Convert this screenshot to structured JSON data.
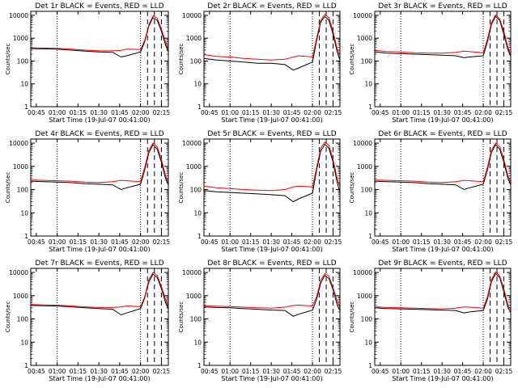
{
  "figure": {
    "x_tick_labels": [
      "00:45",
      "01:00",
      "01:15",
      "01:30",
      "01:45",
      "02:00",
      "02:15"
    ],
    "y_tick_labels": [
      "1",
      "10",
      "100",
      "1000",
      "10000"
    ],
    "colors": {
      "events": "#000000",
      "lld": "#ff0000",
      "frame": "#000000"
    }
  },
  "chart_data": [
    {
      "type": "line",
      "title": "Det 1r BLACK = Events, RED = LLD",
      "xlabel": "Start Time (19-Jul-07 00:41:00)",
      "ylabel": "Counts/sec",
      "scale_y": "log",
      "ylim": [
        1,
        15000
      ],
      "xlim": [
        "00:41",
        "02:20"
      ],
      "grid": false,
      "x": [
        "00:41",
        "00:50",
        "01:00",
        "01:10",
        "01:20",
        "01:30",
        "01:40",
        "01:46",
        "01:50",
        "02:00",
        "02:03",
        "02:06",
        "02:09",
        "02:12",
        "02:15",
        "02:18",
        "02:20"
      ],
      "series": [
        {
          "name": "BLACK = Events",
          "values": [
            350,
            340,
            330,
            300,
            270,
            250,
            240,
            150,
            170,
            250,
            700,
            3500,
            8000,
            6000,
            2000,
            500,
            250
          ]
        },
        {
          "name": "RED = LLD",
          "values": [
            380,
            370,
            360,
            330,
            300,
            280,
            280,
            290,
            330,
            320,
            800,
            4000,
            9500,
            7500,
            2500,
            700,
            300
          ]
        }
      ],
      "markers": {
        "dotted": [
          "01:00",
          "02:00"
        ],
        "dashed": [
          "02:05",
          "02:10",
          "02:15"
        ]
      }
    },
    {
      "type": "line",
      "title": "Det 2r BLACK = Events, RED = LLD",
      "xlabel": "Start Time (19-Jul-07 00:41:00)",
      "ylabel": "Counts/sec",
      "scale_y": "log",
      "ylim": [
        1,
        15000
      ],
      "xlim": [
        "00:41",
        "02:20"
      ],
      "grid": false,
      "x": [
        "00:41",
        "00:50",
        "01:00",
        "01:10",
        "01:20",
        "01:30",
        "01:40",
        "01:46",
        "01:50",
        "02:00",
        "02:03",
        "02:06",
        "02:09",
        "02:12",
        "02:15",
        "02:18",
        "02:20"
      ],
      "series": [
        {
          "name": "BLACK = Events",
          "values": [
            130,
            110,
            100,
            90,
            80,
            80,
            70,
            40,
            50,
            90,
            800,
            5000,
            9000,
            6000,
            1500,
            250,
            110
          ]
        },
        {
          "name": "RED = LLD",
          "values": [
            190,
            160,
            150,
            130,
            120,
            110,
            120,
            150,
            170,
            150,
            1000,
            6000,
            11000,
            8000,
            2000,
            350,
            170
          ]
        }
      ],
      "markers": {
        "dotted": [
          "01:00",
          "02:00"
        ],
        "dashed": [
          "02:05",
          "02:10",
          "02:15"
        ]
      }
    },
    {
      "type": "line",
      "title": "Det 3r BLACK = Events, RED = LLD",
      "xlabel": "Start Time (19-Jul-07 00:41:00)",
      "ylabel": "Counts/sec",
      "scale_y": "log",
      "ylim": [
        1,
        15000
      ],
      "xlim": [
        "00:41",
        "02:20"
      ],
      "grid": false,
      "x": [
        "00:41",
        "00:50",
        "01:00",
        "01:10",
        "01:20",
        "01:30",
        "01:40",
        "01:46",
        "01:50",
        "02:00",
        "02:03",
        "02:06",
        "02:09",
        "02:12",
        "02:15",
        "02:18",
        "02:20"
      ],
      "series": [
        {
          "name": "BLACK = Events",
          "values": [
            250,
            220,
            210,
            200,
            190,
            180,
            170,
            140,
            150,
            170,
            700,
            4000,
            9000,
            6000,
            1500,
            300,
            160
          ]
        },
        {
          "name": "RED = LLD",
          "values": [
            290,
            260,
            250,
            230,
            220,
            220,
            240,
            270,
            260,
            230,
            900,
            5000,
            10500,
            7000,
            2000,
            400,
            190
          ]
        }
      ],
      "markers": {
        "dotted": [
          "01:00",
          "02:00"
        ],
        "dashed": [
          "02:05",
          "02:10",
          "02:15"
        ]
      }
    },
    {
      "type": "line",
      "title": "Det 4r BLACK = Events, RED = LLD",
      "xlabel": "Start Time (19-Jul-07 00:41:00)",
      "ylabel": "Counts/sec",
      "scale_y": "log",
      "ylim": [
        1,
        15000
      ],
      "xlim": [
        "00:41",
        "02:20"
      ],
      "grid": false,
      "x": [
        "00:41",
        "00:50",
        "01:00",
        "01:10",
        "01:20",
        "01:30",
        "01:40",
        "01:46",
        "01:50",
        "02:00",
        "02:03",
        "02:06",
        "02:09",
        "02:12",
        "02:15",
        "02:18",
        "02:20"
      ],
      "series": [
        {
          "name": "BLACK = Events",
          "values": [
            230,
            220,
            210,
            200,
            180,
            170,
            160,
            100,
            120,
            170,
            700,
            4000,
            8500,
            5500,
            1500,
            300,
            160
          ]
        },
        {
          "name": "RED = LLD",
          "values": [
            260,
            250,
            240,
            230,
            210,
            200,
            220,
            250,
            240,
            220,
            900,
            5000,
            10000,
            7000,
            2000,
            400,
            200
          ]
        }
      ],
      "markers": {
        "dotted": [
          "01:00",
          "02:00"
        ],
        "dashed": [
          "02:05",
          "02:10",
          "02:15"
        ]
      }
    },
    {
      "type": "line",
      "title": "Det 5r BLACK = Events, RED = LLD",
      "xlabel": "Start Time (19-Jul-07 00:41:00)",
      "ylabel": "Counts/sec",
      "scale_y": "log",
      "ylim": [
        1,
        15000
      ],
      "xlim": [
        "00:41",
        "02:20"
      ],
      "grid": false,
      "x": [
        "00:41",
        "00:50",
        "01:00",
        "01:10",
        "01:20",
        "01:30",
        "01:40",
        "01:46",
        "01:50",
        "02:00",
        "02:03",
        "02:06",
        "02:09",
        "02:12",
        "02:15",
        "02:18",
        "02:20"
      ],
      "series": [
        {
          "name": "BLACK = Events",
          "values": [
            90,
            80,
            75,
            70,
            65,
            60,
            55,
            30,
            40,
            70,
            700,
            4500,
            9000,
            6000,
            1500,
            200,
            80
          ]
        },
        {
          "name": "RED = LLD",
          "values": [
            140,
            120,
            110,
            100,
            95,
            90,
            100,
            130,
            140,
            130,
            900,
            6000,
            11000,
            8000,
            2000,
            300,
            130
          ]
        }
      ],
      "markers": {
        "dotted": [
          "01:00",
          "02:00"
        ],
        "dashed": [
          "02:05",
          "02:10",
          "02:15"
        ]
      }
    },
    {
      "type": "line",
      "title": "Det 6r BLACK = Events, RED = LLD",
      "xlabel": "Start Time (19-Jul-07 00:41:00)",
      "ylabel": "Counts/sec",
      "scale_y": "log",
      "ylim": [
        1,
        15000
      ],
      "xlim": [
        "00:41",
        "02:20"
      ],
      "grid": false,
      "x": [
        "00:41",
        "00:50",
        "01:00",
        "01:10",
        "01:20",
        "01:30",
        "01:40",
        "01:46",
        "01:50",
        "02:00",
        "02:03",
        "02:06",
        "02:09",
        "02:12",
        "02:15",
        "02:18",
        "02:20"
      ],
      "series": [
        {
          "name": "BLACK = Events",
          "values": [
            230,
            220,
            210,
            200,
            180,
            170,
            160,
            100,
            120,
            170,
            700,
            4000,
            8500,
            5500,
            1500,
            300,
            160
          ]
        },
        {
          "name": "RED = LLD",
          "values": [
            260,
            250,
            240,
            230,
            210,
            200,
            220,
            250,
            240,
            220,
            900,
            5000,
            10000,
            7000,
            2000,
            400,
            200
          ]
        }
      ],
      "markers": {
        "dotted": [
          "01:00",
          "02:00"
        ],
        "dashed": [
          "02:05",
          "02:10",
          "02:15"
        ]
      }
    },
    {
      "type": "line",
      "title": "Det 7r BLACK = Events, RED = LLD",
      "xlabel": "Start Time (19-Jul-07 00:41:00)",
      "ylabel": "Counts/sec",
      "scale_y": "log",
      "ylim": [
        1,
        15000
      ],
      "xlim": [
        "00:41",
        "02:20"
      ],
      "grid": false,
      "x": [
        "00:41",
        "00:50",
        "01:00",
        "01:10",
        "01:20",
        "01:30",
        "01:40",
        "01:46",
        "01:50",
        "02:00",
        "02:03",
        "02:06",
        "02:09",
        "02:12",
        "02:15",
        "02:18",
        "02:20"
      ],
      "series": [
        {
          "name": "BLACK = Events",
          "values": [
            380,
            370,
            360,
            330,
            300,
            280,
            260,
            150,
            180,
            280,
            800,
            4000,
            8500,
            6000,
            2000,
            500,
            260
          ]
        },
        {
          "name": "RED = LLD",
          "values": [
            420,
            400,
            390,
            360,
            330,
            310,
            310,
            330,
            360,
            340,
            900,
            5000,
            10000,
            7500,
            2500,
            700,
            320
          ]
        }
      ],
      "markers": {
        "dotted": [
          "01:00",
          "02:00"
        ],
        "dashed": [
          "02:05",
          "02:10",
          "02:15"
        ]
      }
    },
    {
      "type": "line",
      "title": "Det 8r BLACK = Events, RED = LLD",
      "xlabel": "Start Time (19-Jul-07 00:41:00)",
      "ylabel": "Counts/sec",
      "scale_y": "log",
      "ylim": [
        1,
        15000
      ],
      "xlim": [
        "00:41",
        "02:20"
      ],
      "grid": false,
      "x": [
        "00:41",
        "00:50",
        "01:00",
        "01:10",
        "01:20",
        "01:30",
        "01:40",
        "01:46",
        "01:50",
        "02:00",
        "02:03",
        "02:06",
        "02:09",
        "02:12",
        "02:15",
        "02:18",
        "02:20"
      ],
      "series": [
        {
          "name": "BLACK = Events",
          "values": [
            330,
            310,
            300,
            280,
            260,
            240,
            230,
            130,
            160,
            240,
            700,
            3500,
            7500,
            5500,
            1800,
            400,
            220
          ]
        },
        {
          "name": "RED = LLD",
          "values": [
            370,
            350,
            340,
            320,
            300,
            290,
            320,
            380,
            390,
            360,
            900,
            4500,
            9000,
            7000,
            2200,
            600,
            300
          ]
        }
      ],
      "markers": {
        "dotted": [
          "01:00",
          "02:00"
        ],
        "dashed": [
          "02:05",
          "02:10",
          "02:15"
        ]
      }
    },
    {
      "type": "line",
      "title": "Det 9r BLACK = Events, RED = LLD",
      "xlabel": "Start Time (19-Jul-07 00:41:00)",
      "ylabel": "Counts/sec",
      "scale_y": "log",
      "ylim": [
        1,
        15000
      ],
      "xlim": [
        "00:41",
        "02:20"
      ],
      "grid": false,
      "x": [
        "00:41",
        "00:50",
        "01:00",
        "01:10",
        "01:20",
        "01:30",
        "01:40",
        "01:46",
        "01:50",
        "02:00",
        "02:03",
        "02:06",
        "02:09",
        "02:12",
        "02:15",
        "02:18",
        "02:20"
      ],
      "series": [
        {
          "name": "BLACK = Events",
          "values": [
            300,
            280,
            270,
            260,
            250,
            240,
            230,
            180,
            200,
            230,
            700,
            4000,
            9000,
            6000,
            1500,
            300,
            200
          ]
        },
        {
          "name": "RED = LLD",
          "values": [
            330,
            310,
            300,
            290,
            280,
            270,
            290,
            330,
            320,
            290,
            900,
            5000,
            10500,
            7000,
            2000,
            400,
            240
          ]
        }
      ],
      "markers": {
        "dotted": [
          "01:00",
          "02:00"
        ],
        "dashed": [
          "02:05",
          "02:10",
          "02:15"
        ]
      }
    }
  ]
}
